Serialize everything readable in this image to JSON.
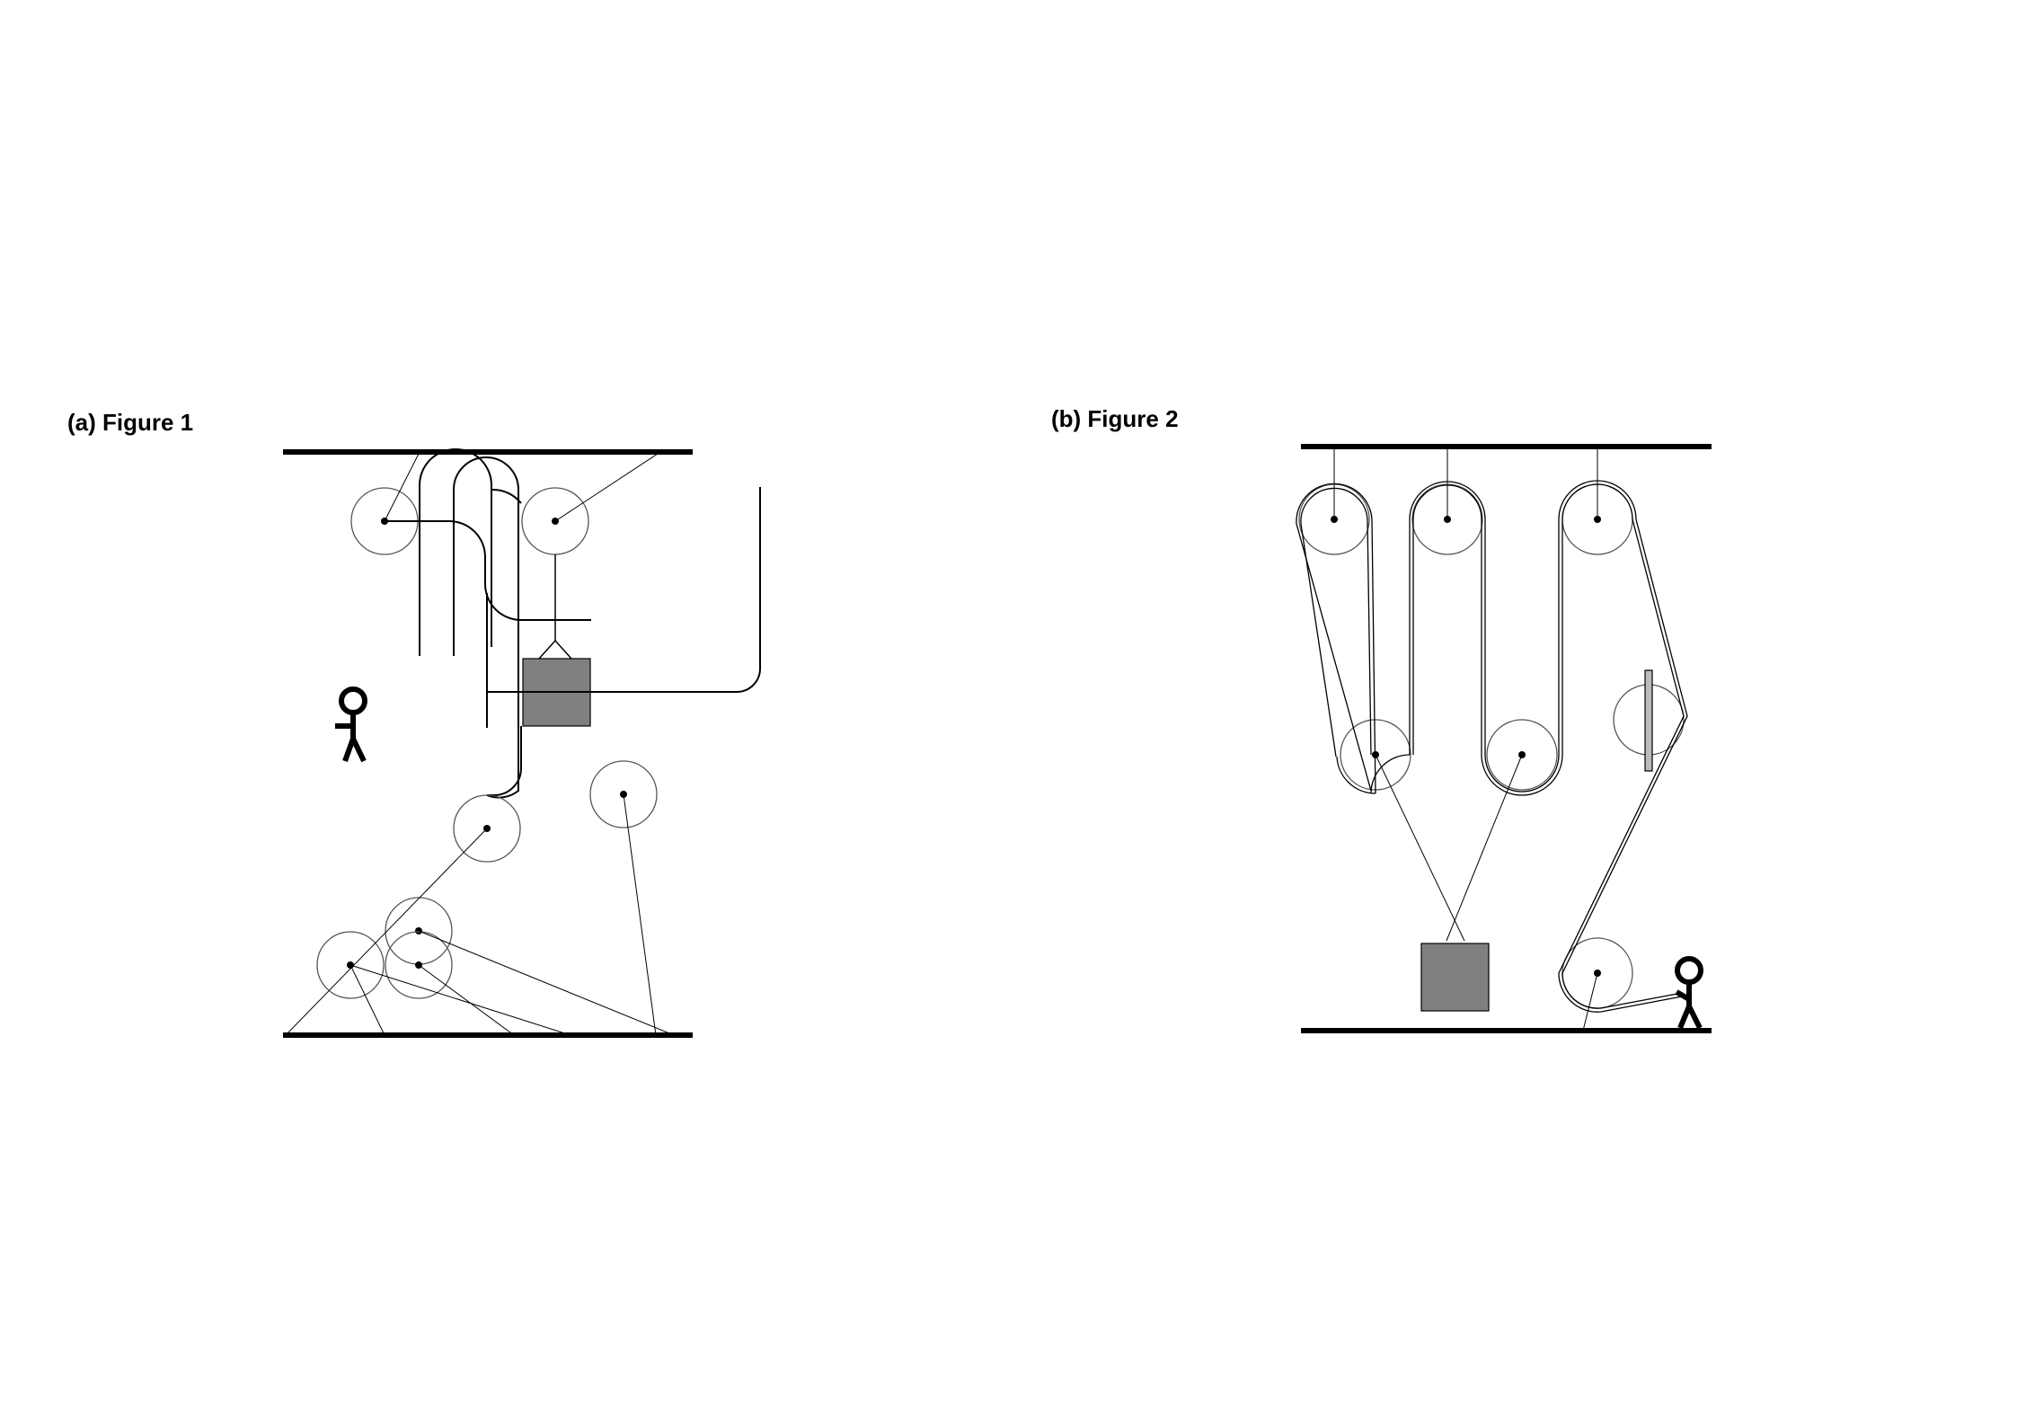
{
  "figures": [
    {
      "label": "(a) Figure 1"
    },
    {
      "label": "(b) Figure 2"
    }
  ],
  "colors": {
    "line": "#000000",
    "pulley_outline": "#555555",
    "load_fill": "#808080",
    "background": "#ffffff"
  },
  "icons": [
    "stick-figure-icon",
    "pulley-icon",
    "load-block-icon"
  ]
}
